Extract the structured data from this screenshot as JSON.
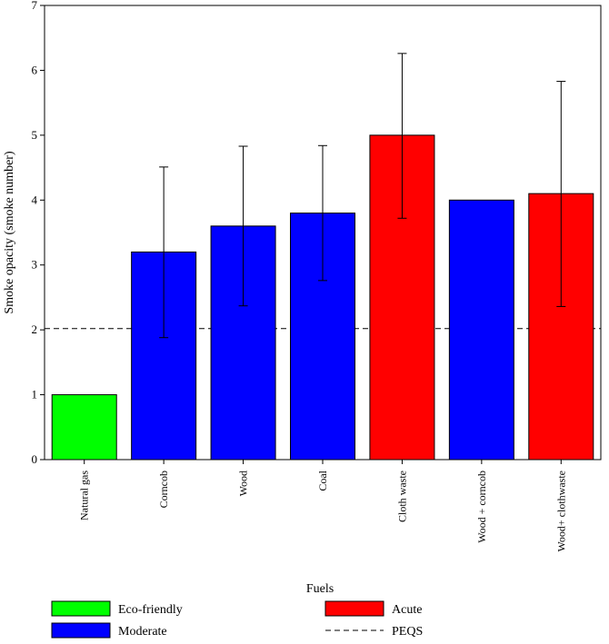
{
  "chart_data": {
    "type": "bar",
    "xlabel": "Fuels",
    "ylabel": "Smoke opacity (smoke number)",
    "ylim": [
      0,
      7
    ],
    "yticks": [
      "0",
      "1",
      "2",
      "3",
      "4",
      "5",
      "6",
      "7"
    ],
    "categories": [
      "Natural gas",
      "Corncob",
      "Wood",
      "Coal",
      "Cloth waste",
      "Wood + corncob",
      "Wood+ clothwaste"
    ],
    "values": [
      1.0,
      3.2,
      3.6,
      3.8,
      5.0,
      4.0,
      4.1
    ],
    "error_low": [
      null,
      1.88,
      2.37,
      2.76,
      3.72,
      null,
      2.36
    ],
    "error_high": [
      null,
      4.51,
      4.83,
      4.84,
      6.26,
      null,
      5.83
    ],
    "bar_classes": [
      "Eco-friendly",
      "Moderate",
      "Moderate",
      "Moderate",
      "Acute",
      "Moderate",
      "Acute"
    ],
    "reference_line": {
      "name": "PEQS",
      "value": 2.02,
      "style": "dashed"
    },
    "legend": [
      {
        "label": "Eco-friendly",
        "kind": "box",
        "color": "#00ff00"
      },
      {
        "label": "Moderate",
        "kind": "box",
        "color": "#0000ff"
      },
      {
        "label": "Acute",
        "kind": "box",
        "color": "#ff0000"
      },
      {
        "label": "PEQS",
        "kind": "dash",
        "color": "#000000"
      }
    ],
    "legend_position": "bottom"
  }
}
